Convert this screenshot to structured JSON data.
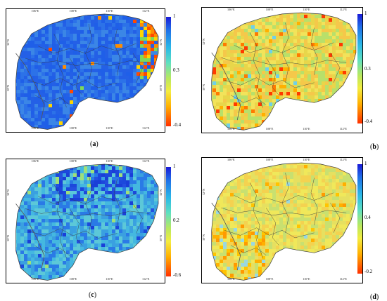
{
  "panels": [
    {
      "id": "a",
      "label_open": "(",
      "label_letter": "a",
      "label_close": ")",
      "colorbar": {
        "max": "1",
        "mid": "0.3",
        "min": "-0.4"
      },
      "field_colors": [
        "#1f5fe8",
        "#2c72e8",
        "#3b86e6",
        "#2460e6"
      ],
      "hotspot_colors": [
        "#ff4a00",
        "#ff8c00",
        "#ffd400",
        "#7ed957"
      ],
      "x_ticks": [
        "106°E",
        "108°E",
        "110°E",
        "112°E"
      ],
      "y_ticks": [
        "32°N",
        "30°N"
      ]
    },
    {
      "id": "b",
      "label_open": "(",
      "label_letter": "b",
      "label_close": ")",
      "colorbar": {
        "max": "1",
        "mid": "0.3",
        "min": "-0.4"
      },
      "field_colors": [
        "#f2e35a",
        "#e8d64a",
        "#b8e06a",
        "#f5c84a"
      ],
      "hotspot_colors": [
        "#ff3a00",
        "#ff7a00",
        "#ffb000",
        "#6fd0e8"
      ],
      "x_ticks": [
        "106°E",
        "108°E",
        "110°E",
        "112°E"
      ],
      "y_ticks": [
        "32°N",
        "30°N"
      ]
    },
    {
      "id": "c",
      "label_open": "(",
      "label_letter": "c",
      "label_close": ")",
      "colorbar": {
        "max": "1",
        "mid": "0.2",
        "min": "-0.6"
      },
      "field_colors": [
        "#3aa0e0",
        "#44b8e0",
        "#2a7ae6",
        "#5cc8d8"
      ],
      "hotspot_colors": [
        "#1a3fd8",
        "#2450e0",
        "#9ee07a",
        "#1c48dc"
      ],
      "x_ticks": [
        "106°E",
        "108°E",
        "110°E",
        "112°E"
      ],
      "y_ticks": [
        "32°N",
        "30°N"
      ]
    },
    {
      "id": "d",
      "label_open": "(",
      "label_letter": "d",
      "label_close": ")",
      "colorbar": {
        "max": "1",
        "mid": "0.4",
        "min": "-0.2"
      },
      "field_colors": [
        "#f0e85a",
        "#e6e060",
        "#c8e070",
        "#f4d250"
      ],
      "hotspot_colors": [
        "#ffb000",
        "#ff9a00",
        "#9ad8e0",
        "#ffc400"
      ],
      "x_ticks": [
        "106°E",
        "108°E",
        "110°E",
        "112°E"
      ],
      "y_ticks": [
        "32°N",
        "30°N"
      ]
    }
  ],
  "outline_color": "#3a3a3a"
}
